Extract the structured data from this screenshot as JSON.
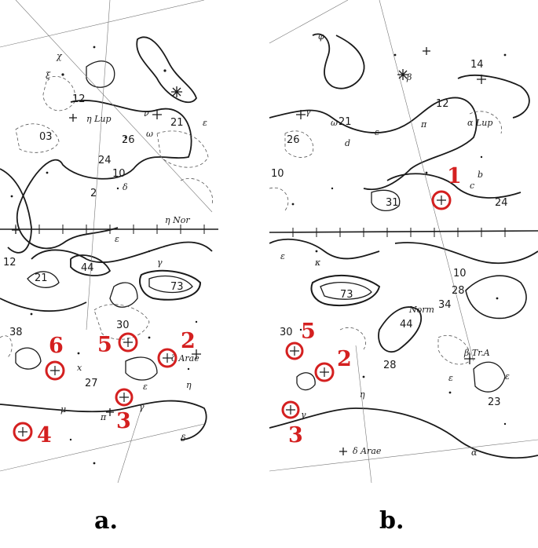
{
  "panels": [
    {
      "id": "a",
      "caption": "a.",
      "contour_labels": [
        "03",
        "12",
        "26",
        "21",
        "24",
        "10",
        "2",
        "12",
        "21",
        "44",
        "73",
        "38",
        "30",
        "27"
      ],
      "greek_labels": [
        "χ",
        "ξ",
        "η Lup",
        "ω",
        "ν",
        "ε",
        "δ",
        "η Nor",
        "γ",
        "ε",
        "x",
        "μ",
        "π",
        "ε",
        "ζ Arae",
        "η",
        "γ",
        "δ"
      ],
      "markers": [
        {
          "label": "2"
        },
        {
          "label": "3"
        },
        {
          "label": "4"
        },
        {
          "label": "5"
        },
        {
          "label": "6"
        }
      ]
    },
    {
      "id": "b",
      "caption": "b.",
      "contour_labels": [
        "14",
        "12",
        "26",
        "21",
        "10",
        "31",
        "24",
        "10",
        "28",
        "34",
        "73",
        "44",
        "28",
        "30",
        "23"
      ],
      "greek_labels": [
        "φ",
        "β",
        "ω",
        "γ",
        "ε",
        "d",
        "α Lup",
        "π",
        "b",
        "c",
        "κ",
        "ε",
        "Norm",
        "β Tr.A",
        "ε",
        "ε",
        "η",
        "δ Arae",
        "α",
        "γ"
      ],
      "markers": [
        {
          "label": "1"
        },
        {
          "label": "2"
        },
        {
          "label": "3"
        },
        {
          "label": "5"
        }
      ]
    }
  ],
  "colors": {
    "marker": "#d42020",
    "ink": "#1a1a1a"
  }
}
